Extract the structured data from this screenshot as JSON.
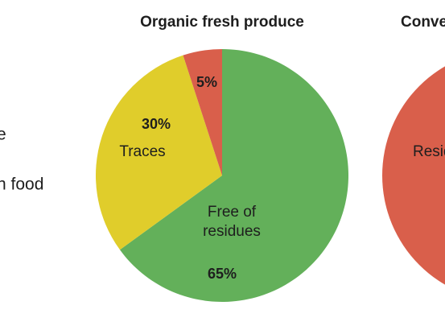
{
  "side_text": [
    "e",
    "n food"
  ],
  "chart_data": [
    {
      "type": "pie",
      "title": "Organic fresh produce",
      "categories": [
        "Free of residues",
        "Traces",
        null
      ],
      "values": [
        65,
        30,
        5
      ],
      "value_labels": [
        "65%",
        "30%",
        "5%"
      ],
      "colors": [
        "#63b05a",
        "#e0cd2b",
        "#d95f4b"
      ]
    },
    {
      "type": "pie",
      "title": "Conve",
      "categories": [
        "Resid"
      ],
      "values": [
        100
      ],
      "colors": [
        "#d95f4b"
      ]
    }
  ]
}
